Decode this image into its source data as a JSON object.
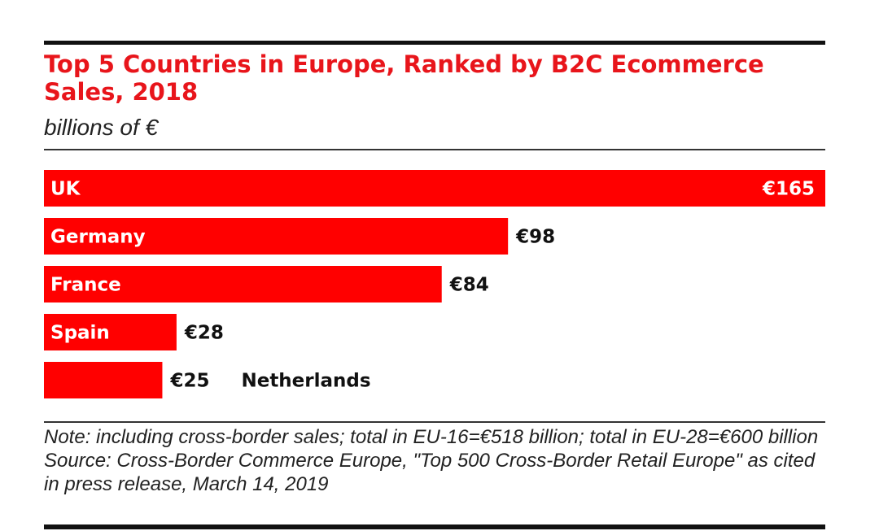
{
  "chart_data": {
    "type": "bar",
    "orientation": "horizontal",
    "title": "Top 5 Countries in Europe, Ranked by B2C Ecommerce Sales, 2018",
    "subtitle": "billions of €",
    "categories": [
      "UK",
      "Germany",
      "France",
      "Spain",
      "Netherlands"
    ],
    "values": [
      165,
      98,
      84,
      28,
      25
    ],
    "value_labels": [
      "€165",
      "€98",
      "€84",
      "€28",
      "€25"
    ],
    "xlim": [
      0,
      165
    ],
    "grid": false,
    "legend": "none",
    "colors": {
      "bar": "#ff0000",
      "label_inside": "#ffffff",
      "label_outside": "#111111",
      "title": "#e8151b"
    }
  },
  "notes": {
    "note": "Note: including cross-border sales; total in EU-16=€518 billion; total in EU-28=€600 billion",
    "source": "Source: Cross-Border Commerce Europe, \"Top 500 Cross-Border Retail Europe\" as cited in press release, March 14, 2019"
  }
}
